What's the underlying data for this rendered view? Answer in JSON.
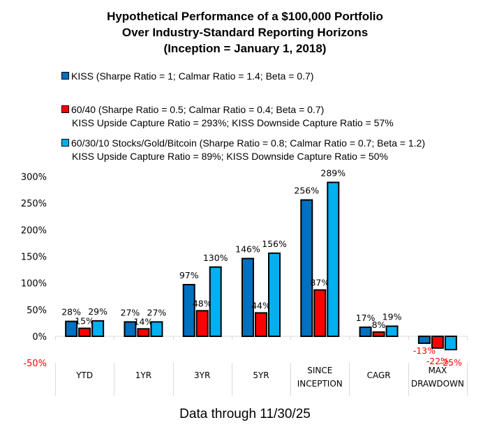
{
  "chart_data": {
    "type": "bar",
    "title": [
      "Hypothetical Performance of a $100,000 Portfolio",
      "Over Industry-Standard Reporting Horizons",
      "(Inception = January 1, 2018)"
    ],
    "categories": [
      [
        "YTD"
      ],
      [
        "1YR"
      ],
      [
        "3YR"
      ],
      [
        "5YR"
      ],
      [
        "SINCE",
        "INCEPTION"
      ],
      [
        "CAGR"
      ],
      [
        "MAX",
        "DRAWDOWN"
      ]
    ],
    "series": [
      {
        "name": "KISS",
        "legend": [
          "KISS (Sharpe Ratio = 1; Calmar Ratio = 1.4; Beta = 0.7)"
        ],
        "color": "#0070C0",
        "values": [
          28,
          27,
          97,
          146,
          256,
          17,
          -13
        ],
        "labels": [
          "28%",
          "27%",
          "97%",
          "146%",
          "256%",
          "17%",
          "-13%"
        ]
      },
      {
        "name": "60/40",
        "legend": [
          "60/40 (Sharpe Ratio = 0.5; Calmar Ratio = 0.4; Beta = 0.7)",
          "KISS Upside Capture Ratio = 293%; KISS Downside Capture Ratio = 57%"
        ],
        "color": "#FF0000",
        "values": [
          15,
          14,
          48,
          44,
          87,
          8,
          -22
        ],
        "labels": [
          "15%",
          "14%",
          "48%",
          "44%",
          "87%",
          "8%",
          "-22%"
        ]
      },
      {
        "name": "60/30/10 Stocks/Gold/Bitcoin",
        "legend": [
          "60/30/10 Stocks/Gold/Bitcoin (Sharpe Ratio = 0.8; Calmar Ratio = 0.7; Beta = 1.2)",
          "KISS Upside Capture Ratio = 89%; KISS Downside Capture Ratio = 50%"
        ],
        "color": "#00B0F0",
        "values": [
          29,
          27,
          130,
          156,
          289,
          19,
          -25
        ],
        "labels": [
          "29%",
          "27%",
          "130%",
          "156%",
          "289%",
          "19%",
          "-25%"
        ]
      }
    ],
    "y_ticks": [
      {
        "value": 300,
        "label": "300%"
      },
      {
        "value": 250,
        "label": "250%"
      },
      {
        "value": 200,
        "label": "200%"
      },
      {
        "value": 150,
        "label": "150%"
      },
      {
        "value": 100,
        "label": "100%"
      },
      {
        "value": 50,
        "label": "50%"
      },
      {
        "value": 0,
        "label": "0%"
      },
      {
        "value": -50,
        "label": "-50%"
      }
    ],
    "ylim": [
      -50,
      300
    ],
    "unit": "%",
    "negative_label_color": "#FF0000",
    "grid": false,
    "legend_position": "top-left",
    "xlabel": "",
    "ylabel": "",
    "footnote": "Data through 11/30/25"
  }
}
